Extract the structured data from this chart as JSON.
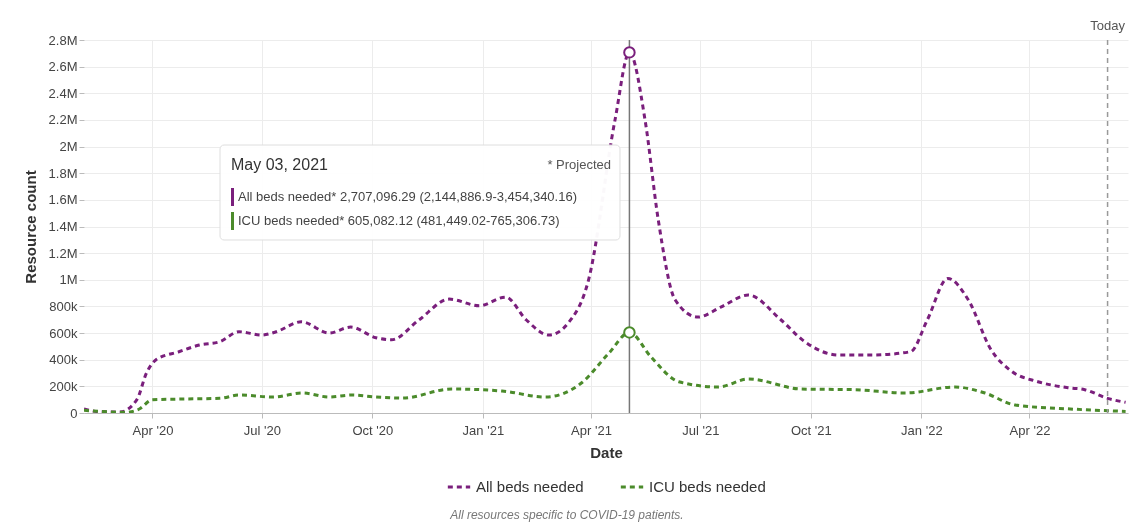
{
  "chart_data": {
    "type": "line",
    "xlabel": "Date",
    "ylabel": "Resource count",
    "xlim": [
      "2020-02-04",
      "2022-06-22"
    ],
    "xticks": [
      {
        "value": "2020-04-01",
        "label": "Apr '20"
      },
      {
        "value": "2020-07-01",
        "label": "Jul '20"
      },
      {
        "value": "2020-10-01",
        "label": "Oct '20"
      },
      {
        "value": "2021-01-01",
        "label": "Jan '21"
      },
      {
        "value": "2021-04-01",
        "label": "Apr '21"
      },
      {
        "value": "2021-07-01",
        "label": "Jul '21"
      },
      {
        "value": "2021-10-01",
        "label": "Oct '21"
      },
      {
        "value": "2022-01-01",
        "label": "Jan '22"
      },
      {
        "value": "2022-04-01",
        "label": "Apr '22"
      }
    ],
    "ylim": [
      0,
      2800000
    ],
    "yticks": [
      0,
      {
        "value": 200000,
        "label": "200k"
      },
      {
        "value": 400000,
        "label": "400k"
      },
      {
        "value": 600000,
        "label": "600k"
      },
      {
        "value": 800000,
        "label": "800k"
      },
      {
        "value": 1000000,
        "label": "1M"
      },
      {
        "value": 1200000,
        "label": "1.2M"
      },
      {
        "value": 1400000,
        "label": "1.4M"
      },
      {
        "value": 1600000,
        "label": "1.6M"
      },
      {
        "value": 1800000,
        "label": "1.8M"
      },
      {
        "value": 2000000,
        "label": "2M"
      },
      {
        "value": 2200000,
        "label": "2.2M"
      },
      {
        "value": 2400000,
        "label": "2.4M"
      },
      {
        "value": 2600000,
        "label": "2.6M"
      },
      {
        "value": 2800000,
        "label": "2.8M"
      }
    ],
    "grid": true,
    "legend": "bottom",
    "line_style": "dashed",
    "series": [
      {
        "name": "All beds needed",
        "color": "#7a1f7c",
        "x": [
          "2020-02-04",
          "2020-02-17",
          "2020-03-05",
          "2020-03-19",
          "2020-03-27",
          "2020-04-04",
          "2020-04-23",
          "2020-05-10",
          "2020-05-27",
          "2020-06-12",
          "2020-07-01",
          "2020-07-13",
          "2020-08-03",
          "2020-08-26",
          "2020-09-13",
          "2020-10-04",
          "2020-10-17",
          "2020-11-09",
          "2020-12-04",
          "2020-12-29",
          "2021-01-20",
          "2021-02-06",
          "2021-02-25",
          "2021-03-13",
          "2021-03-30",
          "2021-04-21",
          "2021-05-03",
          "2021-05-16",
          "2021-05-27",
          "2021-06-10",
          "2021-06-29",
          "2021-07-18",
          "2021-08-10",
          "2021-09-06",
          "2021-09-26",
          "2021-10-24",
          "2021-11-20",
          "2021-12-23",
          "2022-01-06",
          "2022-01-23",
          "2022-02-09",
          "2022-02-28",
          "2022-03-16",
          "2022-04-08",
          "2022-05-03",
          "2022-05-17",
          "2022-06-05",
          "2022-06-20"
        ],
        "values": [
          30000,
          10000,
          8000,
          100000,
          300000,
          400000,
          460000,
          510000,
          535000,
          610000,
          585000,
          610000,
          685000,
          600000,
          645000,
          565000,
          550000,
          700000,
          855000,
          805000,
          870000,
          700000,
          585000,
          675000,
          1000000,
          2200000,
          2707096.29,
          2200000,
          1450000,
          850000,
          720000,
          795000,
          885000,
          700000,
          535000,
          435000,
          435000,
          460000,
          700000,
          1010000,
          850000,
          475000,
          320000,
          235000,
          190000,
          175000,
          110000,
          80000
        ]
      },
      {
        "name": "ICU beds needed",
        "color": "#4b8b2b",
        "x": [
          "2020-02-04",
          "2020-03-10",
          "2020-03-21",
          "2020-04-01",
          "2020-04-26",
          "2020-05-27",
          "2020-06-12",
          "2020-07-10",
          "2020-08-04",
          "2020-08-26",
          "2020-09-14",
          "2020-10-04",
          "2020-10-26",
          "2020-12-06",
          "2021-01-17",
          "2021-02-22",
          "2021-03-24",
          "2021-04-16",
          "2021-05-03",
          "2021-05-21",
          "2021-06-13",
          "2021-07-16",
          "2021-08-10",
          "2021-09-23",
          "2021-11-07",
          "2021-12-18",
          "2022-01-29",
          "2022-02-23",
          "2022-03-20",
          "2022-05-05",
          "2022-06-20"
        ],
        "values": [
          20000,
          5000,
          30000,
          100000,
          105000,
          110000,
          135000,
          120000,
          150000,
          120000,
          135000,
          120000,
          112000,
          180000,
          165000,
          120000,
          225000,
          450000,
          605082.12,
          420000,
          235000,
          195000,
          255000,
          180000,
          175000,
          150000,
          195000,
          150000,
          60000,
          30000,
          12000
        ]
      }
    ],
    "ref_lines": [
      {
        "axis": "x",
        "value": "2021-05-03",
        "color": "#777777",
        "line_style": "solid"
      },
      {
        "axis": "x",
        "value": "2022-06-05",
        "label": "Today",
        "color": "#999999",
        "line_style": "dashed"
      }
    ],
    "annotations": [
      "May 03, 2021",
      "* Projected",
      "All beds needed* 2,707,096.29 (2,144,886.9-3,454,340.16)",
      "ICU beds needed* 605,082.12 (481,449.02-765,306.73)",
      "All resources specific to COVID-19 patients."
    ]
  }
}
